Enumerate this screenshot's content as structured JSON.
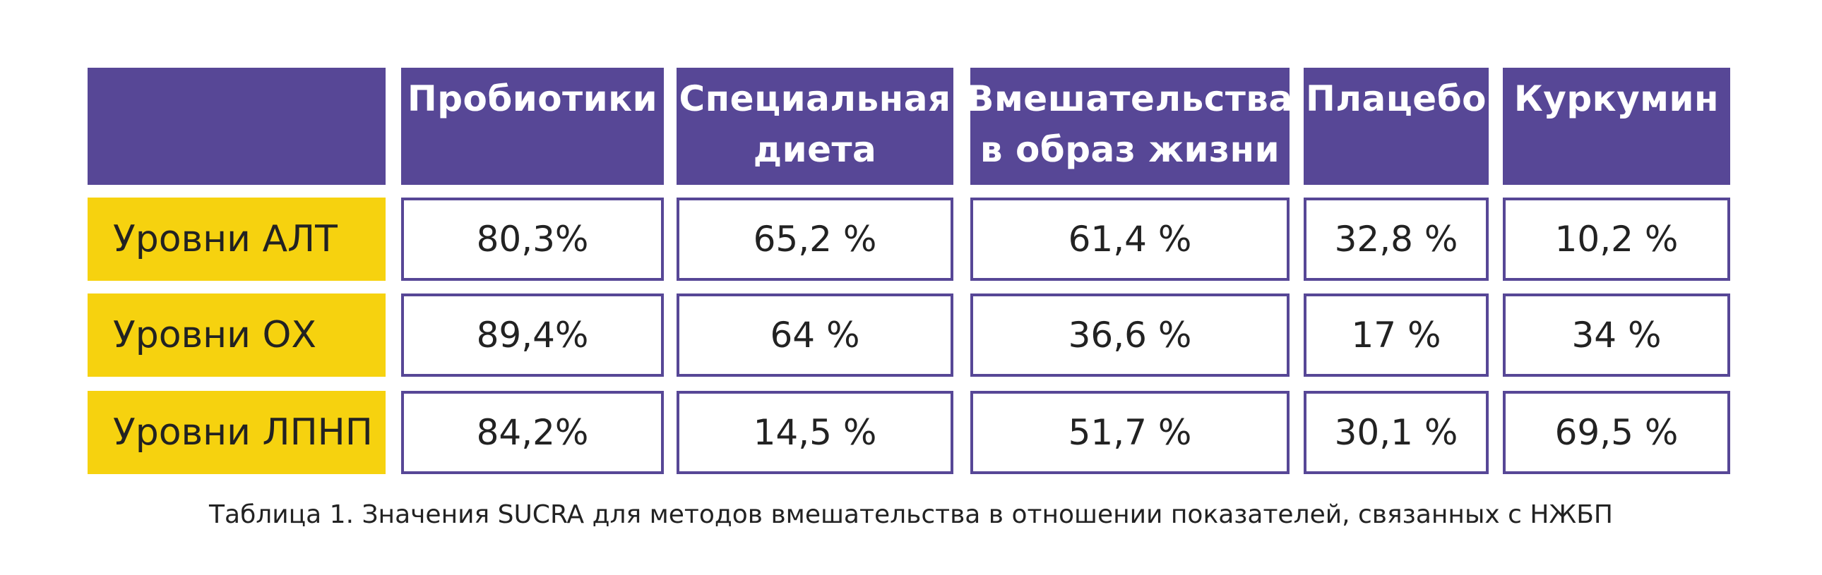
{
  "table": {
    "columns": [
      "Пробиотики",
      "Специальная диета",
      "Вмешательства в образ жизни",
      "Плацебо",
      "Куркумин"
    ],
    "columns_lines": [
      [
        "Пробиотики"
      ],
      [
        "Специальная",
        "диета"
      ],
      [
        "Вмешательства",
        "в образ жизни"
      ],
      [
        "Плацебо"
      ],
      [
        "Куркумин"
      ]
    ],
    "rows": [
      {
        "label": "Уровни АЛТ",
        "values": [
          "80,3%",
          "65,2 %",
          "61,4 %",
          "32,8 %",
          "10,2 %"
        ]
      },
      {
        "label": "Уровни ОХ",
        "values": [
          "89,4%",
          "64 %",
          "36,6 %",
          "17 %",
          "34 %"
        ]
      },
      {
        "label": "Уровни ЛПНП",
        "values": [
          "84,2%",
          "14,5 %",
          "51,7 %",
          "30,1 %",
          "69,5 %"
        ]
      }
    ]
  },
  "caption": "Таблица 1. Значения SUCRA для методов вмешательства в отношении показателей, связанных с НЖБП",
  "colors": {
    "header": "#574796",
    "row_label": "#f6d20f",
    "border": "#574796"
  }
}
